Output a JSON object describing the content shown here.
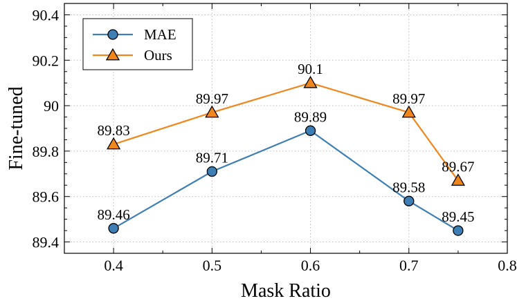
{
  "chart_data": {
    "type": "line",
    "title": "",
    "xlabel": "Mask Ratio",
    "ylabel": "Fine-tuned",
    "xlim": [
      0.35,
      0.8
    ],
    "ylim": [
      89.35,
      90.45
    ],
    "xticks": [
      0.4,
      0.5,
      0.6,
      0.7,
      0.8
    ],
    "xtick_labels": [
      "0.4",
      "0.5",
      "0.6",
      "0.7",
      "0.8"
    ],
    "yticks": [
      89.4,
      89.6,
      89.8,
      90.0,
      90.2,
      90.4
    ],
    "ytick_labels": [
      "89.4",
      "89.6",
      "89.8",
      "90",
      "90.2",
      "90.4"
    ],
    "grid": true,
    "legend_position": "top-left",
    "series": [
      {
        "name": "MAE",
        "color": "#3d7fb4",
        "marker": "circle",
        "x": [
          0.4,
          0.5,
          0.6,
          0.7,
          0.75
        ],
        "y": [
          89.46,
          89.71,
          89.89,
          89.58,
          89.45
        ],
        "labels": [
          "89.46",
          "89.71",
          "89.89",
          "89.58",
          "89.45"
        ]
      },
      {
        "name": "Ours",
        "color": "#f0871c",
        "marker": "triangle",
        "x": [
          0.4,
          0.5,
          0.6,
          0.7,
          0.75
        ],
        "y": [
          89.83,
          89.97,
          90.1,
          89.97,
          89.67
        ],
        "labels": [
          "89.83",
          "89.97",
          "90.1",
          "89.97",
          "89.67"
        ]
      }
    ]
  }
}
